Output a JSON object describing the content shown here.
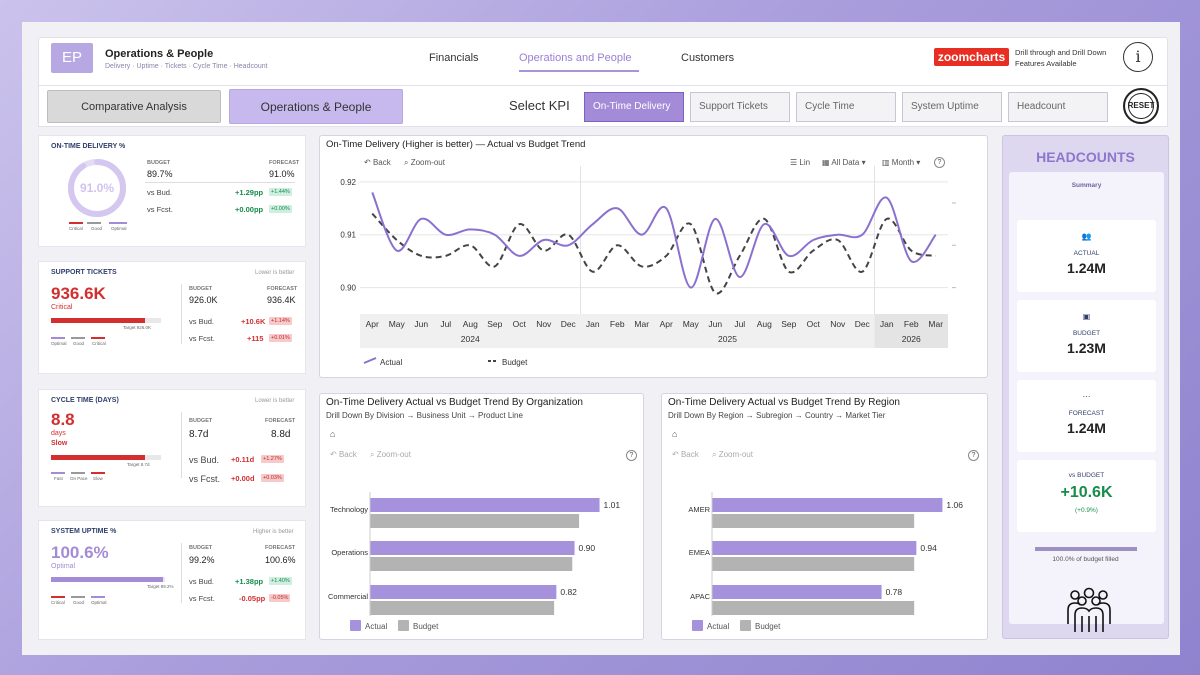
{
  "app": {
    "logo": "EP",
    "title": "Operations & People",
    "subtitle": "Delivery · Uptime · Tickets · Cycle Time · Headcount"
  },
  "nav": {
    "tabs": [
      "Financials",
      "Operations and People",
      "Customers"
    ],
    "active": "Operations and People"
  },
  "brand": {
    "logo_text": "zoomcharts",
    "drill_note_1": "Drill through and Drill Down",
    "drill_note_2": "Features Available",
    "info_icon": "info-icon"
  },
  "toolbar": {
    "comparative_label": "Comparative Analysis",
    "ops_label": "Operations & People",
    "select_kpi_label": "Select KPI",
    "kpis": [
      "On-Time Delivery",
      "Support Tickets",
      "Cycle Time",
      "System Uptime",
      "Headcount"
    ],
    "active_kpi": "On-Time Delivery",
    "reset_label": "RESET"
  },
  "kpi_cards": {
    "otd": {
      "title": "ON-TIME DELIVERY %",
      "value": "91.0%",
      "level": 0.91,
      "budget_label": "BUDGET",
      "budget": "89.7%",
      "forecast_label": "FORECAST",
      "forecast": "91.0%",
      "vs_bud_label": "vs Bud.",
      "vs_bud": "+1.29pp",
      "vs_bud_badge": "+1.44%",
      "vs_fcst_label": "vs Fcst.",
      "vs_fcst": "+0.00pp",
      "vs_fcst_badge": "+0.00%",
      "legend": [
        "Critical",
        "Good",
        "Optimal"
      ]
    },
    "tickets": {
      "title": "SUPPORT TICKETS",
      "note": "Lower is better",
      "value": "936.6K",
      "status": "Critical",
      "target": "Target 926.0K",
      "level": 0.85,
      "budget_label": "BUDGET",
      "budget": "926.0K",
      "forecast_label": "FORECAST",
      "forecast": "936.4K",
      "vs_bud_label": "vs Bud.",
      "vs_bud": "+10.6K",
      "vs_bud_badge": "+1.14%",
      "vs_fcst_label": "vs Fcst.",
      "vs_fcst": "+115",
      "vs_fcst_badge": "+0.01%",
      "legend": [
        "Optimal",
        "Good",
        "Critical"
      ]
    },
    "cycle": {
      "title": "CYCLE TIME (DAYS)",
      "note": "Lower is better",
      "value": "8.8",
      "unit": "days",
      "status": "Slow",
      "target": "Target 8.7d",
      "level": 0.85,
      "budget_label": "BUDGET",
      "budget": "8.7d",
      "forecast_label": "FORECAST",
      "forecast": "8.8d",
      "vs_bud_label": "vs Bud.",
      "vs_bud": "+0.11d",
      "vs_bud_badge": "+1.27%",
      "vs_fcst_label": "vs Fcst.",
      "vs_fcst": "+0.00d",
      "vs_fcst_badge": "+0.03%",
      "legend": [
        "Fast",
        "On Pace",
        "Slow"
      ]
    },
    "uptime": {
      "title": "SYSTEM UPTIME %",
      "note": "Higher is better",
      "value": "100.6%",
      "status": "Optimal",
      "target": "Target 99.2%",
      "level": 0.98,
      "budget_label": "BUDGET",
      "budget": "99.2%",
      "forecast_label": "FORECAST",
      "forecast": "100.6%",
      "vs_bud_label": "vs Bud.",
      "vs_bud": "+1.38pp",
      "vs_bud_badge": "+1.40%",
      "vs_fcst_label": "vs Fcst.",
      "vs_fcst": "-0.05pp",
      "vs_fcst_badge": "-0.05%",
      "legend": [
        "Critical",
        "Good",
        "Optimal"
      ]
    }
  },
  "trend": {
    "title": "On-Time Delivery (Higher is better) — Actual vs Budget Trend",
    "back": "Back",
    "zoom_out": "Zoom-out",
    "lin": "Lin",
    "all_data": "All Data",
    "month": "Month",
    "legend_actual": "Actual",
    "legend_budget": "Budget"
  },
  "org": {
    "title": "On-Time Delivery Actual vs Budget Trend By Organization",
    "sub": "Drill Down By Division → Business Unit → Product Line",
    "back": "Back",
    "zoom_out": "Zoom-out",
    "legend_actual": "Actual",
    "legend_budget": "Budget"
  },
  "region": {
    "title": "On-Time Delivery Actual vs Budget Trend By Region",
    "sub": "Drill Down By Region → Subregion → Country → Market Tier",
    "back": "Back",
    "zoom_out": "Zoom-out",
    "legend_actual": "Actual",
    "legend_budget": "Budget"
  },
  "headcount": {
    "title": "HEADCOUNTS",
    "summary": "Summary",
    "actual_label": "ACTUAL",
    "actual": "1.24M",
    "budget_label": "BUDGET",
    "budget": "1.23M",
    "forecast_label": "FORECAST",
    "forecast": "1.24M",
    "vs_budget_label": "vs BUDGET",
    "vs_budget": "+10.6K",
    "vs_budget_pct": "(+0.9%)",
    "filled_text": "100.0% of budget filled",
    "filled": 1.0,
    "people_icon": "people-group-icon"
  },
  "colors": {
    "accent": "#a591dc",
    "budget_grey": "#b3b3b3",
    "good": "#178c4b",
    "bad": "#d32f2f"
  },
  "chart_data": [
    {
      "type": "line",
      "title": "On-Time Delivery (Higher is better) — Actual vs Budget Trend",
      "x": [
        "Apr",
        "May",
        "Jun",
        "Jul",
        "Aug",
        "Sep",
        "Oct",
        "Nov",
        "Dec",
        "Jan",
        "Feb",
        "Mar",
        "Apr",
        "May",
        "Jun",
        "Jul",
        "Aug",
        "Sep",
        "Oct",
        "Nov",
        "Dec",
        "Jan",
        "Feb",
        "Mar"
      ],
      "years": [
        {
          "label": "2024",
          "from": 0,
          "to": 8
        },
        {
          "label": "2025",
          "from": 9,
          "to": 20
        },
        {
          "label": "2026",
          "from": 21,
          "to": 23
        }
      ],
      "series": [
        {
          "name": "Actual",
          "values": [
            0.918,
            0.907,
            0.913,
            0.91,
            0.911,
            0.91,
            0.906,
            0.909,
            0.908,
            0.912,
            0.915,
            0.91,
            0.915,
            0.9,
            0.913,
            0.902,
            0.912,
            0.906,
            0.909,
            0.91,
            0.91,
            0.917,
            0.905,
            0.91
          ]
        },
        {
          "name": "Budget",
          "values": [
            0.914,
            0.909,
            0.906,
            0.906,
            0.908,
            0.904,
            0.912,
            0.907,
            0.91,
            0.903,
            0.908,
            0.904,
            0.906,
            0.912,
            0.899,
            0.906,
            0.913,
            0.903,
            0.907,
            0.909,
            0.903,
            0.913,
            0.907,
            0.906
          ]
        }
      ],
      "y_ticks": [
        0.9,
        0.91,
        0.92
      ],
      "ylim": [
        0.895,
        0.923
      ]
    },
    {
      "type": "bar",
      "title": "On-Time Delivery Actual vs Budget Trend By Organization",
      "categories": [
        "Technology",
        "Operations",
        "Commercial"
      ],
      "series": [
        {
          "name": "Actual",
          "values": [
            1.01,
            0.9,
            0.82
          ]
        },
        {
          "name": "Budget",
          "values": [
            0.92,
            0.89,
            0.81
          ]
        }
      ],
      "xlim": [
        0,
        1.1
      ]
    },
    {
      "type": "bar",
      "title": "On-Time Delivery Actual vs Budget Trend By Region",
      "categories": [
        "AMER",
        "EMEA",
        "APAC"
      ],
      "series": [
        {
          "name": "Actual",
          "values": [
            1.06,
            0.94,
            0.78
          ]
        },
        {
          "name": "Budget",
          "values": [
            0.93,
            0.93,
            0.93
          ]
        }
      ],
      "xlim": [
        0,
        1.15
      ]
    }
  ]
}
